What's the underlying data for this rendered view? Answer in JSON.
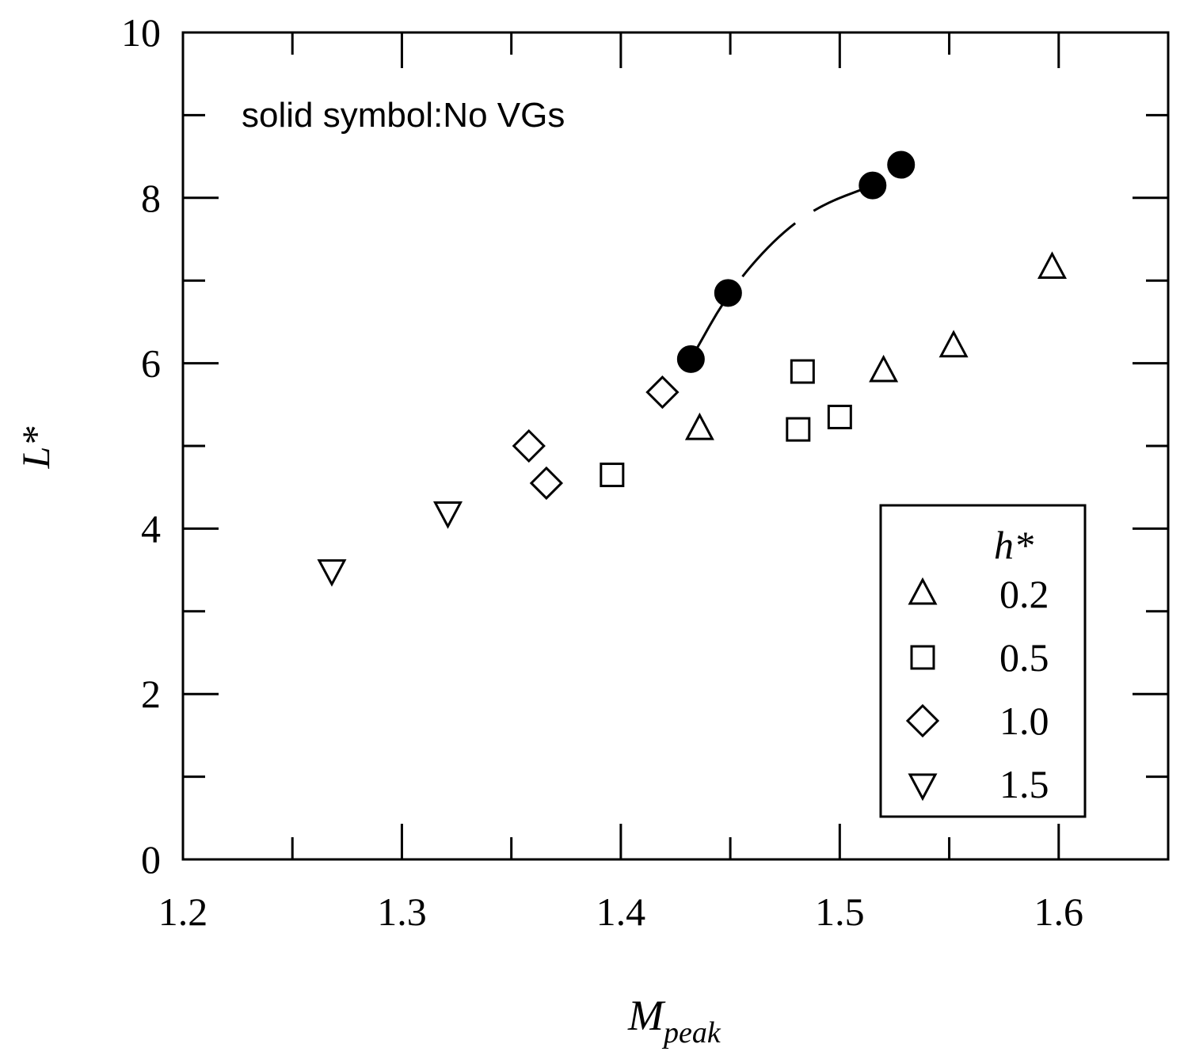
{
  "chart_data": {
    "type": "scatter",
    "xlabel": "M",
    "xlabel_sub": "peak",
    "ylabel": "L*",
    "xlim": [
      1.2,
      1.65
    ],
    "ylim": [
      0,
      10
    ],
    "xticks": [
      1.2,
      1.3,
      1.4,
      1.5,
      1.6
    ],
    "xtick_labels": [
      "1.2",
      "1.3",
      "1.4",
      "1.5",
      "1.6"
    ],
    "yticks": [
      0,
      2,
      4,
      6,
      8,
      10
    ],
    "ytick_labels": [
      "0",
      "2",
      "4",
      "6",
      "8",
      "10"
    ],
    "annotation": "solid symbol:No VGs",
    "legend": {
      "title": "h*",
      "placement": "bottom-right",
      "entries": [
        {
          "marker": "triangle-up",
          "label": "0.2"
        },
        {
          "marker": "square",
          "label": "0.5"
        },
        {
          "marker": "diamond",
          "label": "1.0"
        },
        {
          "marker": "triangle-down",
          "label": "1.5"
        }
      ]
    },
    "series": [
      {
        "marker": "triangle-up",
        "filled": false,
        "points": [
          [
            1.436,
            5.2
          ],
          [
            1.52,
            5.9
          ],
          [
            1.552,
            6.2
          ],
          [
            1.597,
            7.15
          ]
        ]
      },
      {
        "marker": "square",
        "filled": false,
        "points": [
          [
            1.396,
            4.65
          ],
          [
            1.481,
            5.2
          ],
          [
            1.483,
            5.9
          ],
          [
            1.5,
            5.35
          ]
        ]
      },
      {
        "marker": "diamond",
        "filled": false,
        "points": [
          [
            1.358,
            5.0
          ],
          [
            1.366,
            4.55
          ],
          [
            1.419,
            5.65
          ]
        ]
      },
      {
        "marker": "triangle-down",
        "filled": false,
        "points": [
          [
            1.268,
            3.5
          ],
          [
            1.321,
            4.2
          ]
        ]
      },
      {
        "marker": "circle",
        "filled": true,
        "points": [
          [
            1.432,
            6.05
          ],
          [
            1.449,
            6.85
          ],
          [
            1.515,
            8.15
          ],
          [
            1.528,
            8.4
          ]
        ]
      }
    ],
    "trend_curve": {
      "style": "dashed",
      "points": [
        [
          1.432,
          6.05
        ],
        [
          1.449,
          6.85
        ],
        [
          1.47,
          7.5
        ],
        [
          1.49,
          7.9
        ],
        [
          1.515,
          8.15
        ]
      ]
    }
  }
}
